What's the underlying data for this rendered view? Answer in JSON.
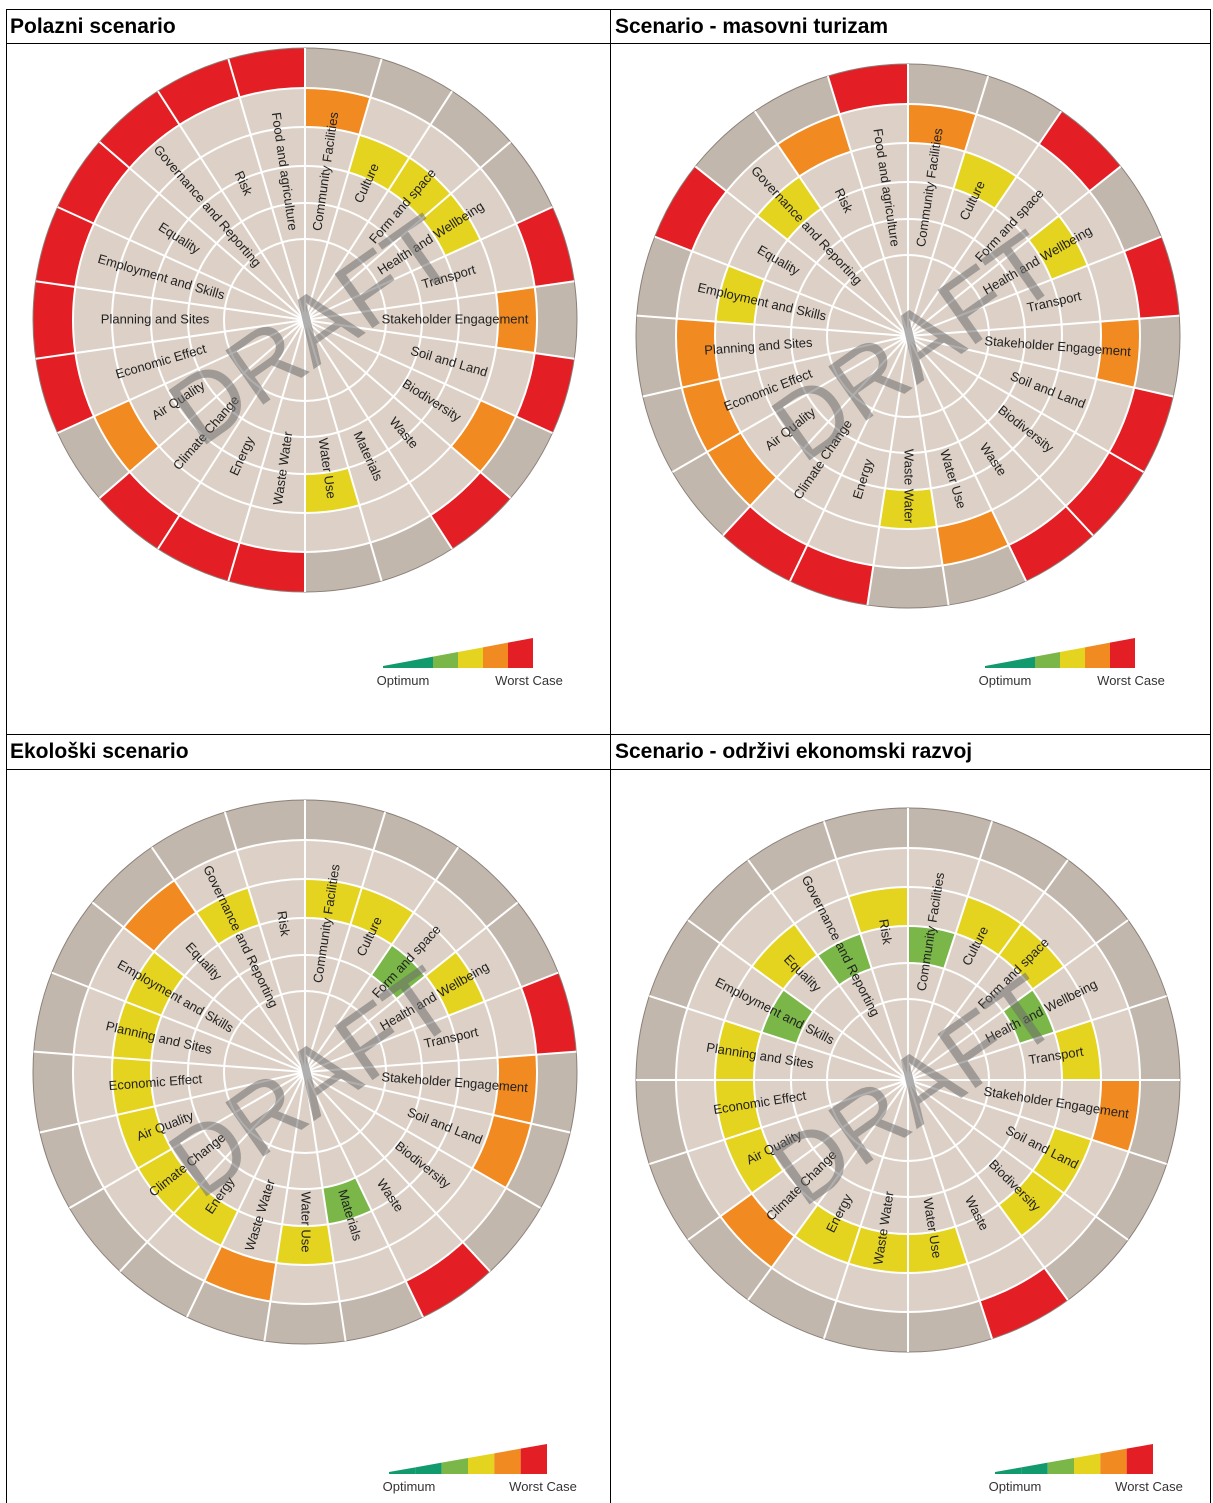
{
  "panels": [
    {
      "title": "Polazni scenario",
      "chart_data": {
        "type": "polar-heatmap",
        "categories": [
          "Community Facilities",
          "Culture",
          "Form and space",
          "Health and Wellbeing",
          "Transport",
          "Stakeholder Engagement",
          "Soil and Land",
          "Biodiversity",
          "Waste",
          "Materials",
          "Water Use",
          "Waste Water",
          "Energy",
          "Climate Change",
          "Air Quality",
          "Economic Effect",
          "Planning and Sites",
          "Employment and Skills",
          "Equality",
          "Governance and Reporting",
          "Risk",
          "Food and agriculture"
        ],
        "values": [
          2,
          3,
          3,
          3,
          1,
          2,
          1,
          2,
          1,
          0,
          3,
          1,
          1,
          1,
          2,
          1,
          1,
          1,
          1,
          1,
          1,
          1
        ],
        "scale_note": "ring index: 1=outer ring (worst) ... 5=innermost; 0=no coloured segment"
      },
      "legend": {
        "left": "Optimum",
        "right": "Worst Case"
      }
    },
    {
      "title": "Scenario - masovni turizam",
      "chart_data": {
        "type": "polar-heatmap",
        "categories": [
          "Community Facilities",
          "Culture",
          "Form and space",
          "Health and Wellbeing",
          "Transport",
          "Stakeholder Engagement",
          "Soil and Land",
          "Biodiversity",
          "Waste",
          "Water Use",
          "Waste Water",
          "Energy",
          "Climate Change",
          "Air Quality",
          "Economic Effect",
          "Planning and Sites",
          "Employment and Skills",
          "Equality",
          "Governance and Reporting",
          "Risk",
          "Food and agriculture"
        ],
        "values": [
          2,
          3,
          1,
          3,
          1,
          2,
          1,
          1,
          1,
          2,
          3,
          1,
          1,
          2,
          2,
          2,
          3,
          1,
          3,
          2,
          1
        ]
      },
      "legend": {
        "left": "Optimum",
        "right": "Worst Case"
      }
    },
    {
      "title": "Ekološki scenario",
      "chart_data": {
        "type": "polar-heatmap",
        "categories": [
          "Community Facilities",
          "Culture",
          "Form and space",
          "Health and Wellbeing",
          "Transport",
          "Stakeholder Engagement",
          "Soil and Land",
          "Biodiversity",
          "Waste",
          "Materials",
          "Water Use",
          "Waste Water",
          "Energy",
          "Climate Change",
          "Air Quality",
          "Economic Effect",
          "Planning and Sites",
          "Employment and Skills",
          "Equality",
          "Governance and Reporting",
          "Risk"
        ],
        "values": [
          3,
          3,
          4,
          3,
          1,
          2,
          2,
          0,
          1,
          4,
          3,
          2,
          3,
          3,
          3,
          3,
          3,
          3,
          2,
          3,
          0
        ]
      },
      "legend": {
        "left": "Optimum",
        "right": "Worst Case"
      }
    },
    {
      "title": "Scenario - održivi ekonomski razvoj",
      "chart_data": {
        "type": "polar-heatmap",
        "categories": [
          "Community Facilities",
          "Culture",
          "Form and space",
          "Health and Wellbeing",
          "Transport",
          "Stakeholder Engagement",
          "Soil and Land",
          "Biodiversity",
          "Waste",
          "Water Use",
          "Waste Water",
          "Energy",
          "Climate Change",
          "Air Quality",
          "Economic Effect",
          "Planning and Sites",
          "Employment and Skills",
          "Equality",
          "Governance and Reporting",
          "Risk"
        ],
        "values": [
          4,
          3,
          3,
          4,
          3,
          2,
          3,
          3,
          1,
          3,
          3,
          3,
          2,
          3,
          3,
          3,
          4,
          3,
          4,
          3
        ]
      },
      "legend": {
        "left": "Optimum",
        "right": "Worst Case"
      }
    }
  ],
  "watermark": "DRAFT",
  "colors": {
    "worst": "#e31e24",
    "bad": "#f18a21",
    "mid": "#e5d41f",
    "good": "#7ab648",
    "optimum": "#129a6f",
    "outer_ring": "#c2b7ad",
    "inner_fill": "#ddd1c7",
    "grid": "#ffffff"
  }
}
